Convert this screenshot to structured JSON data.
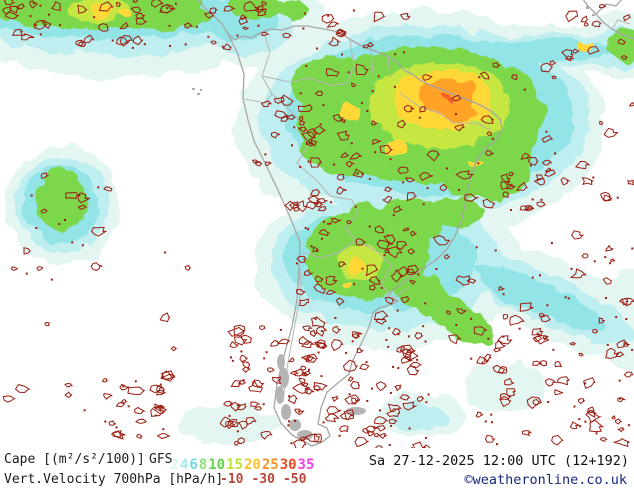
{
  "legend": {
    "cape_label": "Cape [(m²/s²/100)]",
    "model": "GFS",
    "cape_scale": [
      {
        "label": "2",
        "color": "#d8f3f1"
      },
      {
        "label": "4",
        "color": "#a3e9ec"
      },
      {
        "label": "6",
        "color": "#6cd9e0"
      },
      {
        "label": "8",
        "color": "#8fe07c"
      },
      {
        "label": "10",
        "color": "#62d14c"
      },
      {
        "label": "15",
        "color": "#bce23c"
      },
      {
        "label": "20",
        "color": "#fdc030"
      },
      {
        "label": "25",
        "color": "#fb9225"
      },
      {
        "label": "30",
        "color": "#ef4a26"
      },
      {
        "label": "35",
        "color": "#f43fe2"
      }
    ],
    "vv_label": "Vert.Velocity 700hPa [hPa/h]",
    "vv_values": [
      "-10",
      "-30",
      "-50"
    ],
    "vv_color": "#b9453a"
  },
  "footer": {
    "timestamp": "Sa 27-12-2025 12:00 UTC (12+192)",
    "copyright": "©weatheronline.co.uk",
    "copyright_color": "#17277d"
  },
  "map": {
    "background": "#ffffff",
    "coastline_color": "#a6a6a6",
    "border_color": "#b5b5b5",
    "ice_color": "#b4b4b4",
    "contour_color": "#9b1d12",
    "cape_fill_colors": [
      "#e3f6f2",
      "#bfeef0",
      "#93e4e6",
      "#7cd74b",
      "#c6e743",
      "#ffd838",
      "#ffa226",
      "#f4502a"
    ]
  }
}
